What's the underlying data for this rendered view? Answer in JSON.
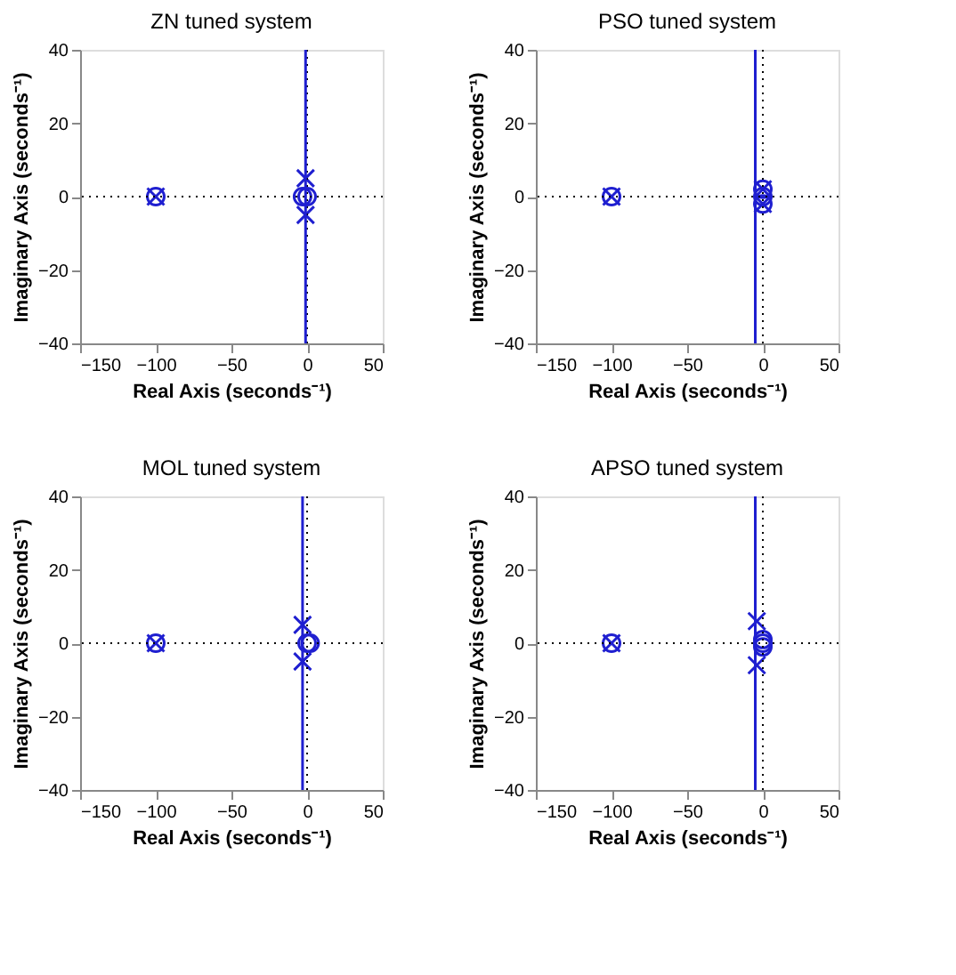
{
  "chart_data": [
    {
      "type": "scatter",
      "title": "ZN tuned system",
      "xlabel": "Real Axis (seconds⁻¹)",
      "ylabel": "Imaginary Axis (seconds⁻¹)",
      "xlim": [
        -150,
        50
      ],
      "ylim": [
        -40,
        40
      ],
      "xticks": [
        -150,
        -100,
        -50,
        0,
        50
      ],
      "yticks": [
        -40,
        -20,
        0,
        20,
        40
      ],
      "grid": false,
      "series": [
        {
          "color": "#1f1fd0",
          "marker": "circle",
          "x": [
            -100,
            -3,
            0
          ],
          "values": [
            0,
            0,
            0
          ]
        },
        {
          "color": "#1f1fd0",
          "marker": "cross",
          "x": [
            -100,
            -1,
            -1
          ],
          "values": [
            0,
            5,
            -5
          ]
        }
      ],
      "ref_lines": [
        {
          "axis": "x",
          "value": 0,
          "color": "#000000",
          "line_style": "dotted"
        },
        {
          "axis": "y",
          "value": 0,
          "color": "#000000",
          "line_style": "dotted"
        },
        {
          "axis": "x",
          "value": -1,
          "color": "#1f1fd0",
          "line_style": "solid"
        }
      ]
    },
    {
      "type": "scatter",
      "title": "PSO tuned system",
      "xlabel": "Real Axis (seconds⁻¹)",
      "ylabel": "Imaginary Axis (seconds⁻¹)",
      "xlim": [
        -150,
        50
      ],
      "ylim": [
        -40,
        40
      ],
      "xticks": [
        -150,
        -100,
        -50,
        0,
        50
      ],
      "yticks": [
        -40,
        -20,
        0,
        20,
        40
      ],
      "grid": false,
      "series": [
        {
          "color": "#1f1fd0",
          "marker": "circle",
          "x": [
            -100,
            0,
            0,
            0
          ],
          "values": [
            0,
            2,
            0,
            -2
          ]
        },
        {
          "color": "#1f1fd0",
          "marker": "cross",
          "x": [
            -100,
            0,
            0
          ],
          "values": [
            0,
            2,
            -2
          ]
        }
      ],
      "ref_lines": [
        {
          "axis": "x",
          "value": 0,
          "color": "#000000",
          "line_style": "dotted"
        },
        {
          "axis": "y",
          "value": 0,
          "color": "#000000",
          "line_style": "dotted"
        },
        {
          "axis": "x",
          "value": -5,
          "color": "#1f1fd0",
          "line_style": "solid"
        }
      ]
    },
    {
      "type": "scatter",
      "title": "MOL tuned system",
      "xlabel": "Real Axis (seconds⁻¹)",
      "ylabel": "Imaginary Axis (seconds⁻¹)",
      "xlim": [
        -150,
        50
      ],
      "ylim": [
        -40,
        40
      ],
      "xticks": [
        -150,
        -100,
        -50,
        0,
        50
      ],
      "yticks": [
        -40,
        -20,
        0,
        20,
        40
      ],
      "grid": false,
      "series": [
        {
          "color": "#1f1fd0",
          "marker": "circle",
          "x": [
            -100,
            0,
            2
          ],
          "values": [
            0,
            0,
            0
          ]
        },
        {
          "color": "#1f1fd0",
          "marker": "cross",
          "x": [
            -100,
            -3,
            -3
          ],
          "values": [
            0,
            5,
            -5
          ]
        }
      ],
      "ref_lines": [
        {
          "axis": "x",
          "value": 0,
          "color": "#000000",
          "line_style": "dotted"
        },
        {
          "axis": "y",
          "value": 0,
          "color": "#000000",
          "line_style": "dotted"
        },
        {
          "axis": "x",
          "value": -3,
          "color": "#1f1fd0",
          "line_style": "solid"
        }
      ]
    },
    {
      "type": "scatter",
      "title": "APSO tuned system",
      "xlabel": "Real Axis (seconds⁻¹)",
      "ylabel": "Imaginary Axis (seconds⁻¹)",
      "xlim": [
        -150,
        50
      ],
      "ylim": [
        -40,
        40
      ],
      "xticks": [
        -150,
        -100,
        -50,
        0,
        50
      ],
      "yticks": [
        -40,
        -20,
        0,
        20,
        40
      ],
      "grid": false,
      "series": [
        {
          "color": "#1f1fd0",
          "marker": "circle",
          "x": [
            -100,
            0,
            0,
            0
          ],
          "values": [
            0,
            1,
            0,
            -1
          ]
        },
        {
          "color": "#1f1fd0",
          "marker": "cross",
          "x": [
            -100,
            -4,
            -4
          ],
          "values": [
            0,
            6,
            -6
          ]
        }
      ],
      "ref_lines": [
        {
          "axis": "x",
          "value": 0,
          "color": "#000000",
          "line_style": "dotted"
        },
        {
          "axis": "y",
          "value": 0,
          "color": "#000000",
          "line_style": "dotted"
        },
        {
          "axis": "x",
          "value": -5,
          "color": "#1f1fd0",
          "line_style": "solid"
        }
      ]
    }
  ]
}
